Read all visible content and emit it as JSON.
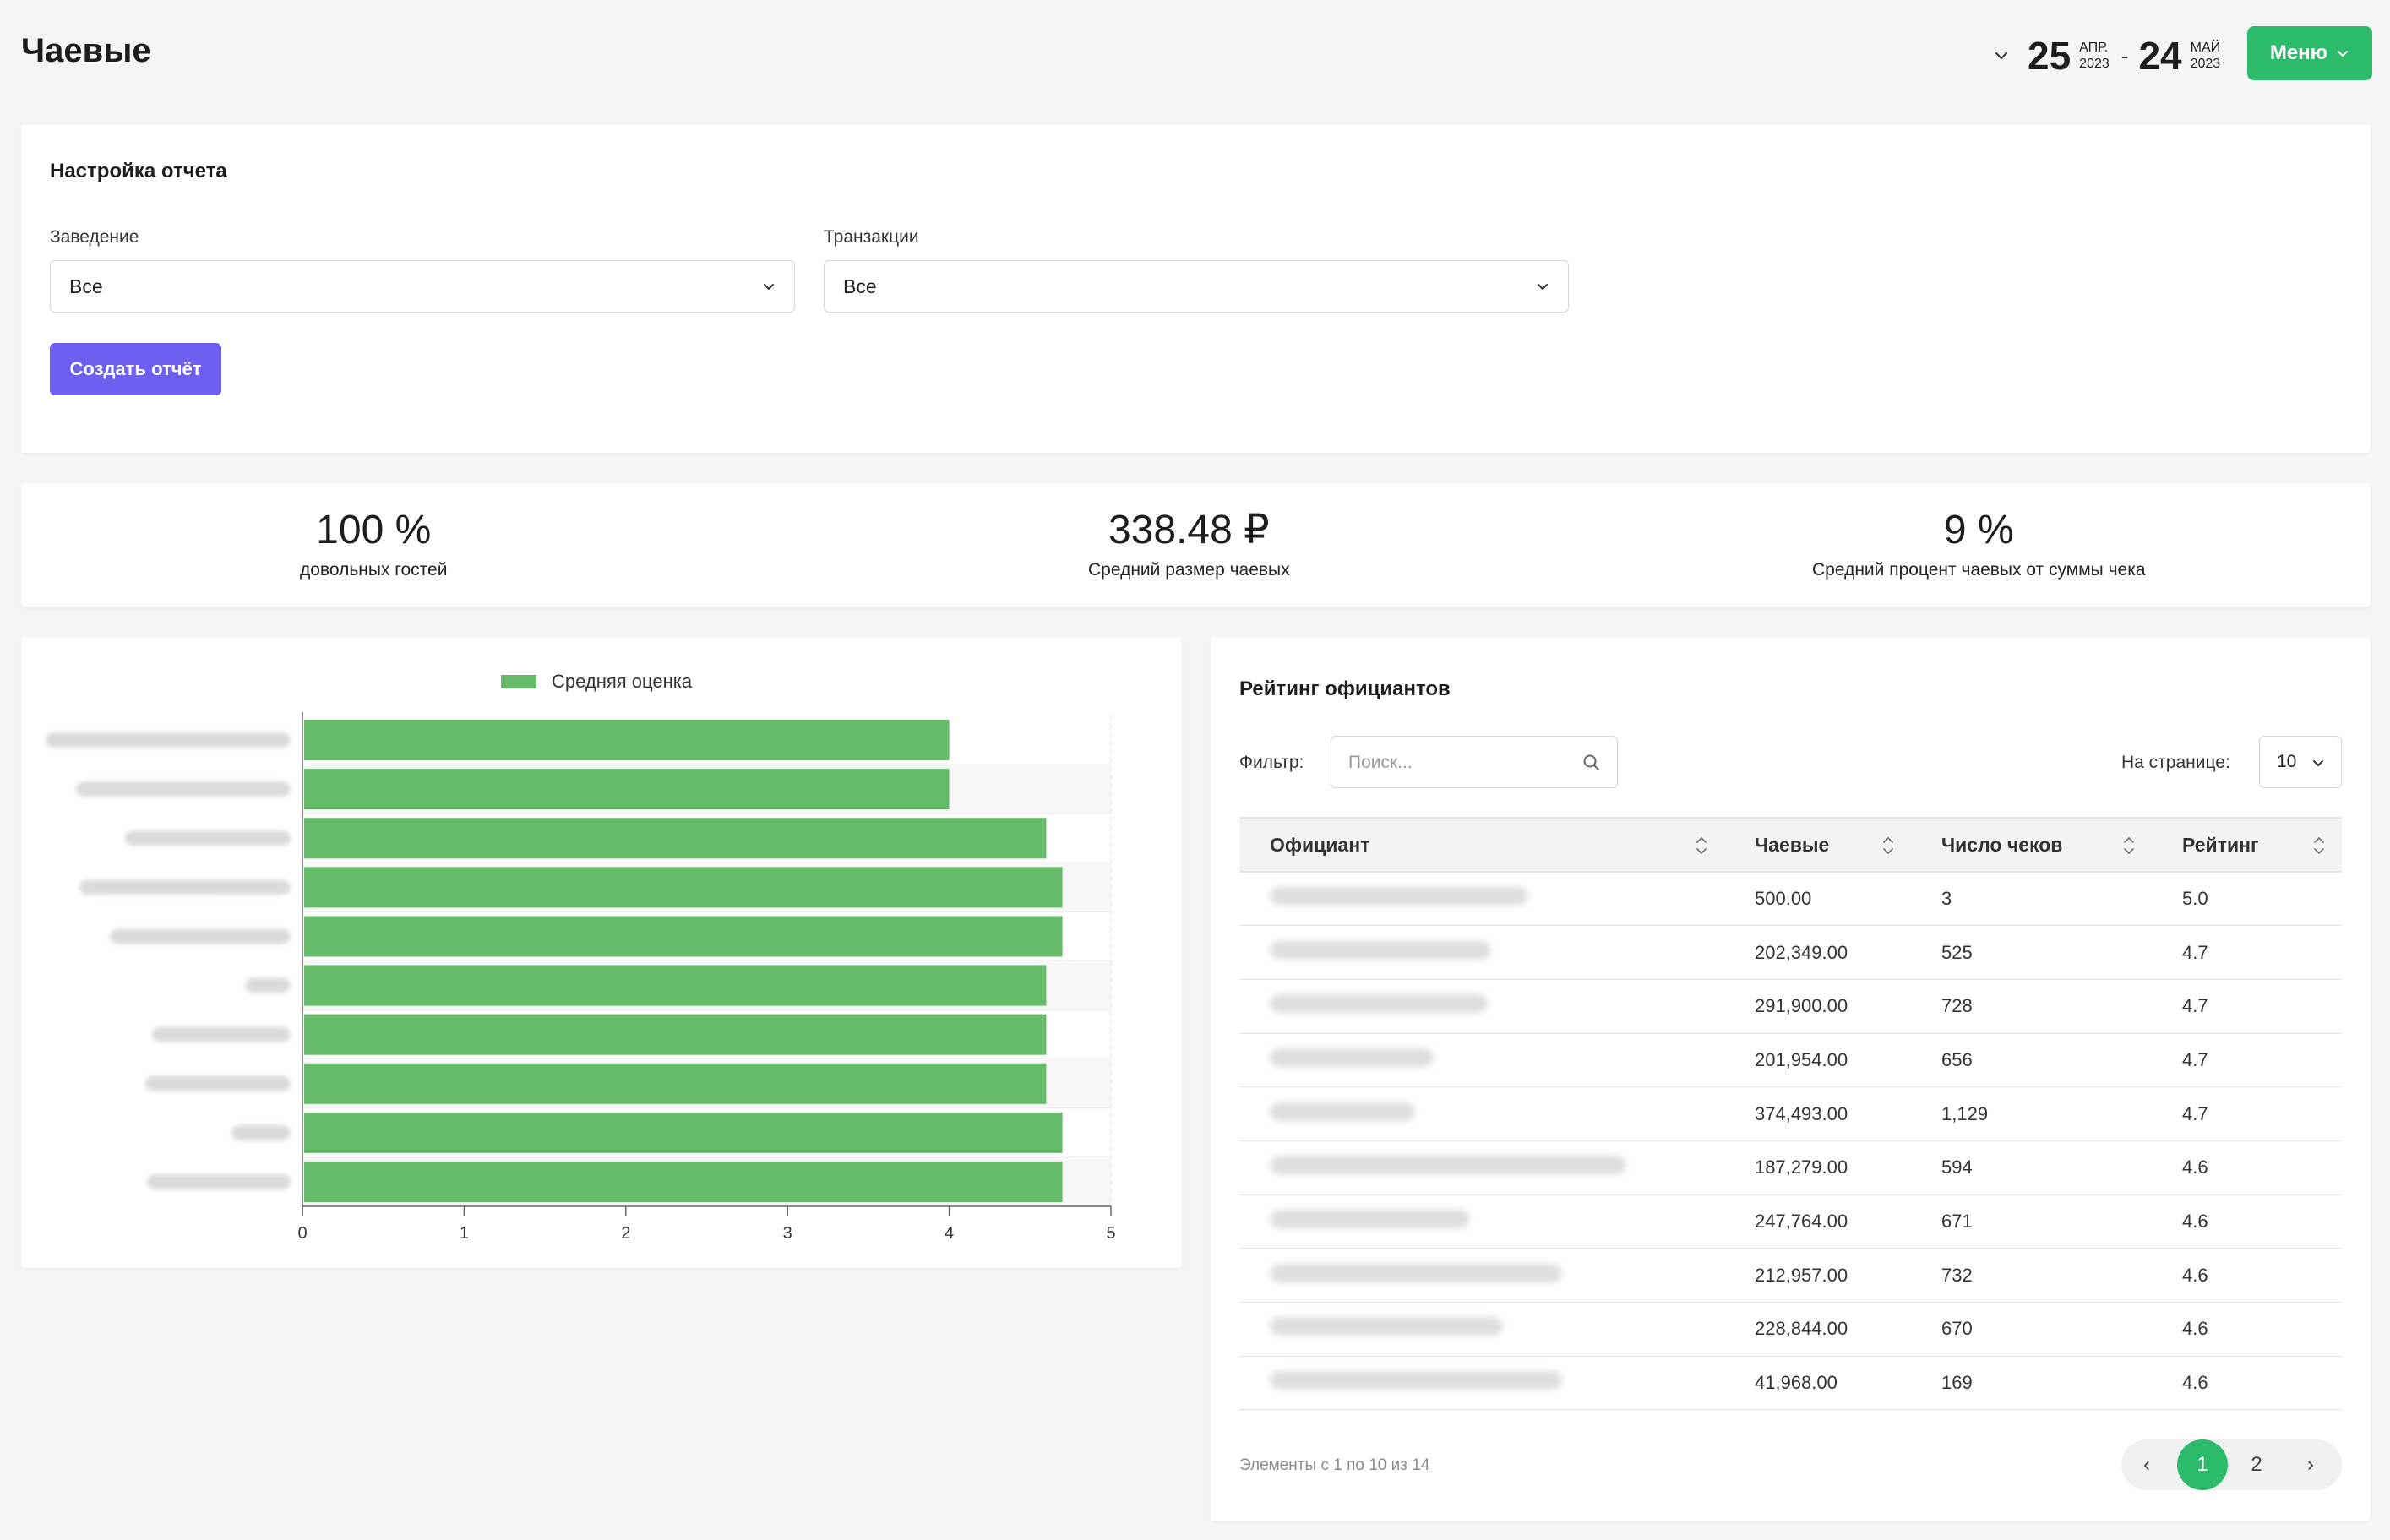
{
  "header": {
    "title": "Чаевые",
    "date_from": {
      "day": "25",
      "month": "АПР.",
      "year": "2023"
    },
    "date_sep": "-",
    "date_to": {
      "day": "24",
      "month": "МАЙ",
      "year": "2023"
    },
    "menu_label": "Меню"
  },
  "settings": {
    "heading": "Настройка отчета",
    "venue": {
      "label": "Заведение",
      "value": "Все"
    },
    "transactions": {
      "label": "Транзакции",
      "value": "Все"
    },
    "create_label": "Создать отчёт"
  },
  "stats": [
    {
      "value": "100 %",
      "label": "довольных гостей"
    },
    {
      "value": "338.48 ₽",
      "label": "Средний размер чаевых"
    },
    {
      "value": "9 %",
      "label": "Средний процент чаевых от суммы чека"
    }
  ],
  "colors": {
    "accent_green": "#2bbb6b",
    "primary_purple": "#6f5ff0",
    "bar_green": "#66bb6a"
  },
  "chart_data": {
    "type": "bar",
    "orientation": "horizontal",
    "legend": [
      "Средняя оценка"
    ],
    "legend_position": "top",
    "categories": [
      "",
      "",
      "",
      "",
      "",
      "",
      "",
      "",
      "",
      ""
    ],
    "series": [
      {
        "name": "Средняя оценка",
        "values": [
          4.0,
          4.0,
          4.6,
          4.7,
          4.7,
          4.6,
          4.6,
          4.6,
          4.7,
          4.7
        ]
      }
    ],
    "xlim": [
      0,
      5
    ],
    "xticks": [
      "0",
      "1",
      "2",
      "3",
      "4",
      "5"
    ],
    "grid": true
  },
  "rating": {
    "heading": "Рейтинг официантов",
    "filter_label": "Фильтр:",
    "search_placeholder": "Поиск...",
    "perpage_label": "На странице:",
    "perpage_value": "10",
    "columns": [
      "Официант",
      "Чаевые",
      "Число чеков",
      "Рейтинг"
    ],
    "rows": [
      {
        "name": "",
        "tips": "500.00",
        "checks": "3",
        "rating": "5.0"
      },
      {
        "name": "",
        "tips": "202,349.00",
        "checks": "525",
        "rating": "4.7"
      },
      {
        "name": "",
        "tips": "291,900.00",
        "checks": "728",
        "rating": "4.7"
      },
      {
        "name": "",
        "tips": "201,954.00",
        "checks": "656",
        "rating": "4.7"
      },
      {
        "name": "",
        "tips": "374,493.00",
        "checks": "1,129",
        "rating": "4.7"
      },
      {
        "name": "",
        "tips": "187,279.00",
        "checks": "594",
        "rating": "4.6"
      },
      {
        "name": "",
        "tips": "247,764.00",
        "checks": "671",
        "rating": "4.6"
      },
      {
        "name": "",
        "tips": "212,957.00",
        "checks": "732",
        "rating": "4.6"
      },
      {
        "name": "",
        "tips": "228,844.00",
        "checks": "670",
        "rating": "4.6"
      },
      {
        "name": "",
        "tips": "41,968.00",
        "checks": "169",
        "rating": "4.6"
      }
    ],
    "footer_info": "Элементы с 1 по 10 из 14",
    "pagination": {
      "prev": "‹",
      "pages": [
        "1",
        "2"
      ],
      "current": "1",
      "next": "›"
    }
  }
}
